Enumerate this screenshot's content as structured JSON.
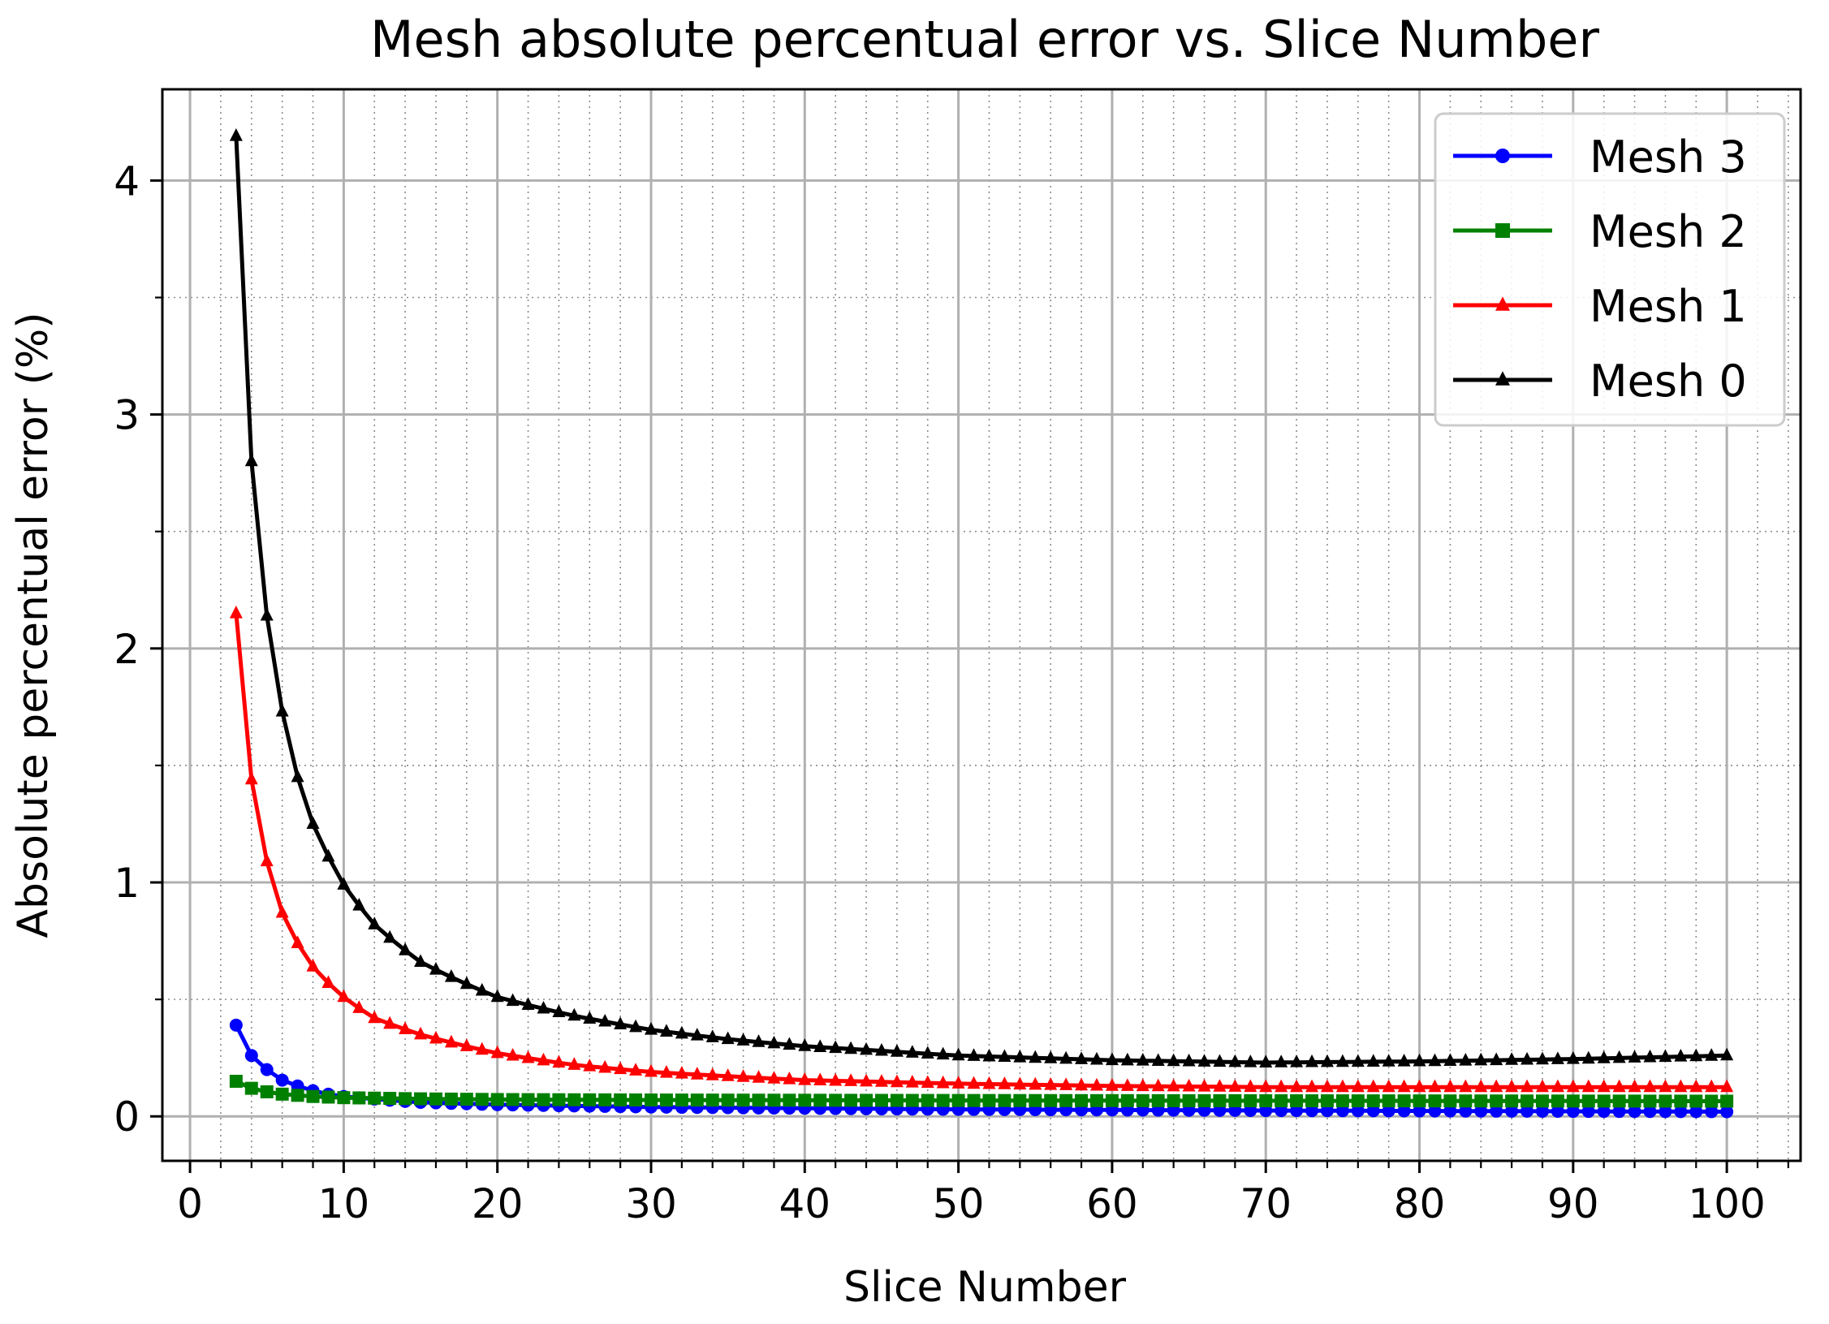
{
  "chart_data": {
    "type": "line",
    "title": "Mesh absolute percentual error vs. Slice Number",
    "xlabel": "Slice Number",
    "ylabel": "Absolute percentual error (%)",
    "xlim": [
      -1.8,
      104.8
    ],
    "ylim": [
      -0.19,
      4.39
    ],
    "x_major_ticks": [
      0,
      10,
      20,
      30,
      40,
      50,
      60,
      70,
      80,
      90,
      100
    ],
    "y_major_ticks": [
      0,
      1,
      2,
      3,
      4
    ],
    "x_tick_labels": [
      "0",
      "10",
      "20",
      "30",
      "40",
      "50",
      "60",
      "70",
      "80",
      "90",
      "100"
    ],
    "y_tick_labels": [
      "0",
      "1",
      "2",
      "3",
      "4"
    ],
    "x_minor_step": 2,
    "y_minor_step": 0.5,
    "grid": true,
    "legend_position": "top-right",
    "x": {
      "start": 3,
      "end": 100,
      "step": 1
    },
    "series": [
      {
        "name": "Mesh 3",
        "color": "#0000ff",
        "marker": "circle",
        "knots": [
          [
            3,
            0.39
          ],
          [
            4,
            0.26
          ],
          [
            5,
            0.2
          ],
          [
            6,
            0.155
          ],
          [
            7,
            0.13
          ],
          [
            8,
            0.11
          ],
          [
            9,
            0.095
          ],
          [
            10,
            0.085
          ],
          [
            15,
            0.06
          ],
          [
            20,
            0.05
          ],
          [
            30,
            0.04
          ],
          [
            50,
            0.03
          ],
          [
            70,
            0.025
          ],
          [
            100,
            0.02
          ]
        ]
      },
      {
        "name": "Mesh 2",
        "color": "#008000",
        "marker": "square",
        "knots": [
          [
            3,
            0.15
          ],
          [
            4,
            0.12
          ],
          [
            5,
            0.105
          ],
          [
            6,
            0.095
          ],
          [
            7,
            0.09
          ],
          [
            8,
            0.085
          ],
          [
            10,
            0.08
          ],
          [
            15,
            0.075
          ],
          [
            20,
            0.072
          ],
          [
            30,
            0.07
          ],
          [
            50,
            0.068
          ],
          [
            100,
            0.065
          ]
        ]
      },
      {
        "name": "Mesh 1",
        "color": "#ff0000",
        "marker": "triangle",
        "knots": [
          [
            3,
            2.15
          ],
          [
            4,
            1.44
          ],
          [
            5,
            1.09
          ],
          [
            6,
            0.87
          ],
          [
            7,
            0.74
          ],
          [
            8,
            0.64
          ],
          [
            9,
            0.57
          ],
          [
            10,
            0.51
          ],
          [
            12,
            0.42
          ],
          [
            15,
            0.35
          ],
          [
            20,
            0.27
          ],
          [
            25,
            0.22
          ],
          [
            30,
            0.19
          ],
          [
            40,
            0.155
          ],
          [
            50,
            0.14
          ],
          [
            60,
            0.13
          ],
          [
            70,
            0.125
          ],
          [
            80,
            0.125
          ],
          [
            90,
            0.125
          ],
          [
            100,
            0.125
          ]
        ]
      },
      {
        "name": "Mesh 0",
        "color": "#000000",
        "marker": "triangle",
        "knots": [
          [
            3,
            4.19
          ],
          [
            4,
            2.8
          ],
          [
            5,
            2.14
          ],
          [
            6,
            1.73
          ],
          [
            7,
            1.45
          ],
          [
            8,
            1.25
          ],
          [
            9,
            1.11
          ],
          [
            10,
            0.99
          ],
          [
            12,
            0.82
          ],
          [
            15,
            0.66
          ],
          [
            20,
            0.51
          ],
          [
            25,
            0.43
          ],
          [
            30,
            0.37
          ],
          [
            35,
            0.33
          ],
          [
            40,
            0.3
          ],
          [
            45,
            0.28
          ],
          [
            50,
            0.26
          ],
          [
            55,
            0.25
          ],
          [
            60,
            0.24
          ],
          [
            70,
            0.23
          ],
          [
            80,
            0.235
          ],
          [
            90,
            0.245
          ],
          [
            100,
            0.26
          ]
        ]
      }
    ]
  }
}
